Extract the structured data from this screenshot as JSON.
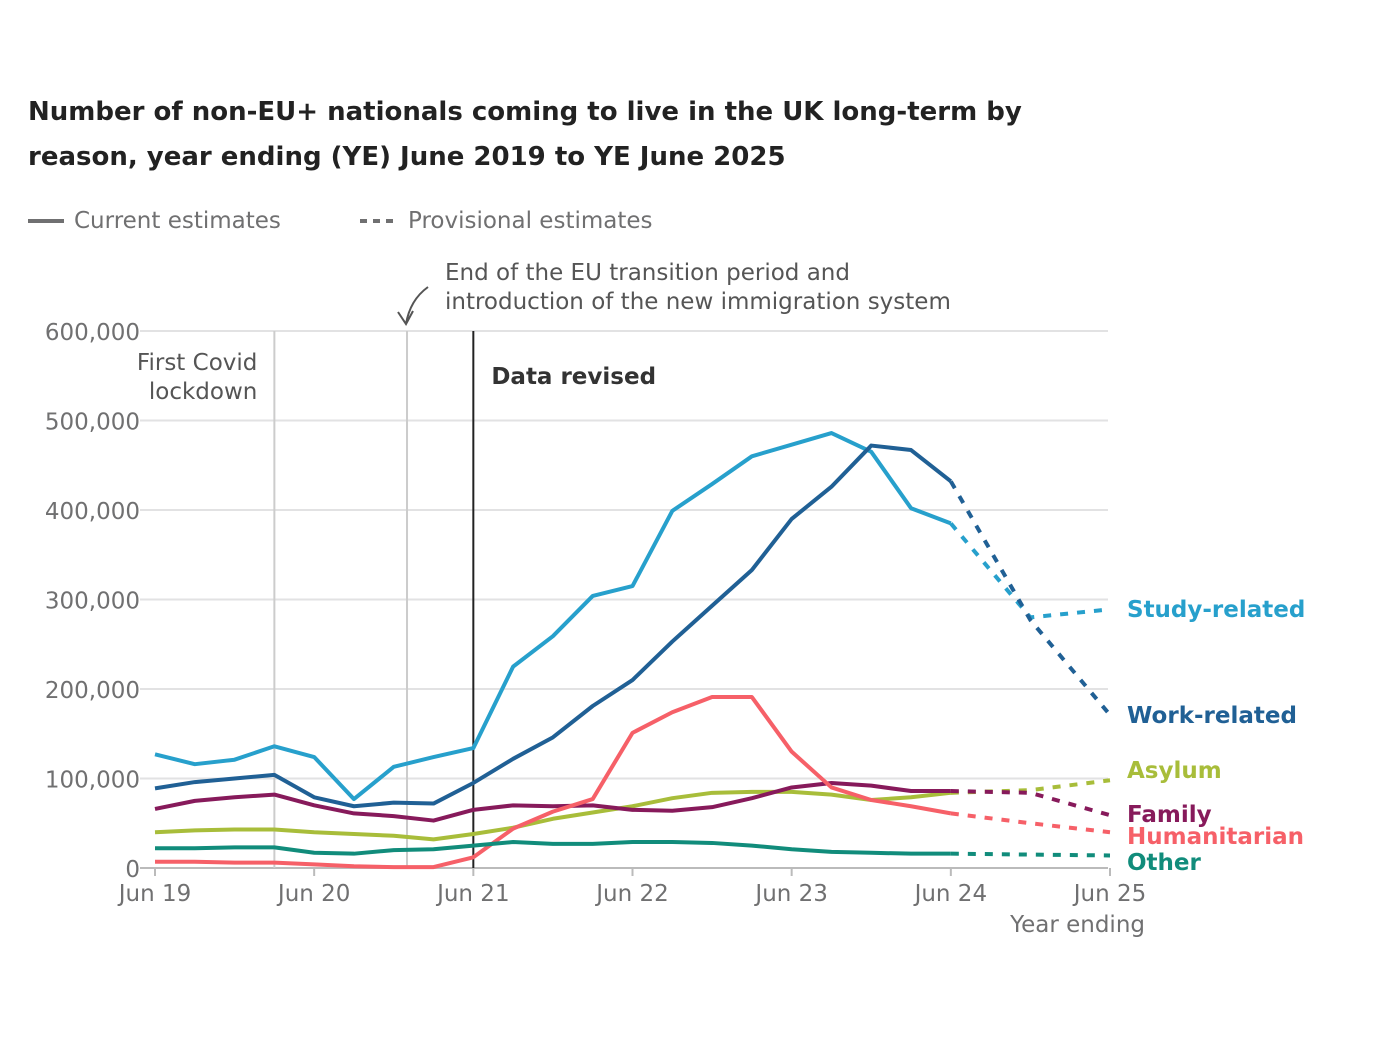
{
  "chart_data": {
    "type": "line",
    "title": "Number of non-EU+ nationals coming to live in the UK long-term by reason, year ending (YE) June 2019 to YE June 2025",
    "legend": {
      "current": "Current estimates",
      "provisional": "Provisional estimates",
      "placement": "top-left"
    },
    "xlabel": "Year ending",
    "x_ticks": [
      "Jun 19",
      "Jun 20",
      "Jun 21",
      "Jun 22",
      "Jun 23",
      "Jun 24",
      "Jun 25"
    ],
    "y_ticks": [
      "0",
      "100,000",
      "200,000",
      "300,000",
      "400,000",
      "500,000",
      "600,000"
    ],
    "ylim": [
      0,
      600000
    ],
    "grid": "horizontal",
    "x_current": [
      "2019-06",
      "2019-09",
      "2019-12",
      "2020-03",
      "2020-06",
      "2020-09",
      "2020-12",
      "2021-03",
      "2021-06",
      "2021-09",
      "2021-12",
      "2022-03",
      "2022-06",
      "2022-09",
      "2022-12",
      "2023-03",
      "2023-06",
      "2023-09",
      "2023-12",
      "2024-03",
      "2024-06"
    ],
    "x_provisional": [
      "2024-06",
      "2024-12",
      "2025-06"
    ],
    "series": [
      {
        "name": "Study-related",
        "color": "#27a0cc",
        "values": [
          127000,
          116000,
          121000,
          136000,
          124000,
          77000,
          113000,
          124000,
          134000,
          225000,
          259000,
          304000,
          315000,
          399000,
          429000,
          460000,
          473000,
          486000,
          465000,
          402000,
          385000
        ],
        "provisional": [
          385000,
          280000,
          289000
        ]
      },
      {
        "name": "Work-related",
        "color": "#206095",
        "values": [
          89000,
          96000,
          100000,
          104000,
          79000,
          69000,
          73000,
          72000,
          95000,
          122000,
          146000,
          181000,
          210000,
          253000,
          293000,
          333000,
          390000,
          426000,
          472000,
          467000,
          432000
        ],
        "provisional": [
          432000,
          277000,
          171000
        ]
      },
      {
        "name": "Asylum",
        "color": "#a8bd3a",
        "values": [
          40000,
          42000,
          43000,
          43000,
          40000,
          38000,
          36000,
          32000,
          38000,
          45000,
          55000,
          62000,
          69000,
          78000,
          84000,
          85000,
          85000,
          82000,
          76000,
          79000,
          84000
        ],
        "provisional": [
          84000,
          87000,
          98000
        ]
      },
      {
        "name": "Family",
        "color": "#871a5b",
        "values": [
          66000,
          75000,
          79000,
          82000,
          70000,
          61000,
          58000,
          53000,
          65000,
          70000,
          69000,
          70000,
          65000,
          64000,
          68000,
          78000,
          90000,
          95000,
          92000,
          86000,
          86000
        ],
        "provisional": [
          86000,
          84000,
          59000
        ]
      },
      {
        "name": "Humanitarian",
        "color": "#f66068",
        "values": [
          7000,
          7000,
          6000,
          6000,
          4000,
          2000,
          1000,
          1000,
          12000,
          44000,
          63000,
          77000,
          151000,
          174000,
          191000,
          191000,
          130000,
          90000,
          76000,
          69000,
          61000
        ],
        "provisional": [
          61000,
          50000,
          40000
        ]
      },
      {
        "name": "Other",
        "color": "#118c7b",
        "values": [
          22000,
          22000,
          23000,
          23000,
          17000,
          16000,
          20000,
          21000,
          25000,
          29000,
          27000,
          27000,
          29000,
          29000,
          28000,
          25000,
          21000,
          18000,
          17000,
          16000,
          16000
        ],
        "provisional": [
          16000,
          15000,
          14000
        ]
      }
    ],
    "annotations": [
      {
        "x": "2020-03",
        "text_lines": [
          "First Covid",
          "lockdown"
        ]
      },
      {
        "x": "2021-01",
        "text_lines": [
          "End of the EU transition period and",
          "introduction of the new immigration system"
        ]
      },
      {
        "x": "2021-06",
        "text_lines": [
          "Data revised"
        ]
      }
    ]
  }
}
